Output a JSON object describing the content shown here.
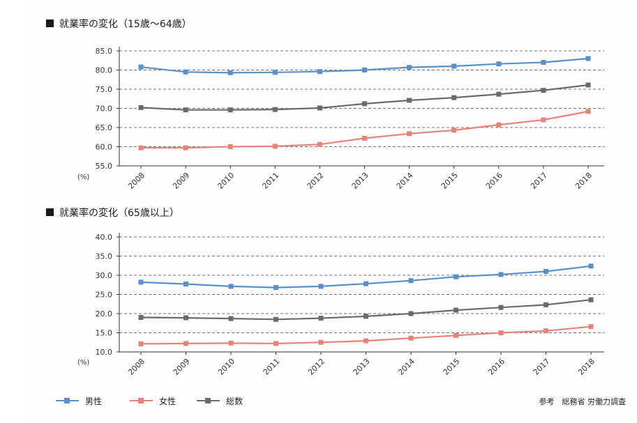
{
  "chart_data": [
    {
      "type": "line",
      "title": "就業率の変化（15歳〜64歳）",
      "unit_label": "(%)",
      "categories": [
        "2008",
        "2009",
        "2010",
        "2011",
        "2012",
        "2013",
        "2014",
        "2015",
        "2016",
        "2017",
        "2018"
      ],
      "ylim": [
        55.0,
        85.0
      ],
      "yticks": [
        "85.0",
        "80.0",
        "75.0",
        "70.0",
        "65.0",
        "60.0",
        "55.0"
      ],
      "ytick_values": [
        85,
        80,
        75,
        70,
        65,
        60,
        55
      ],
      "grid": true,
      "series": [
        {
          "name": "男性",
          "color": "#5b8fc8",
          "values": [
            80.8,
            79.5,
            79.3,
            79.4,
            79.6,
            80.0,
            80.7,
            81.0,
            81.6,
            82.0,
            83.0
          ]
        },
        {
          "name": "女性",
          "color": "#e5837a",
          "values": [
            59.7,
            59.7,
            60.0,
            60.1,
            60.6,
            62.2,
            63.4,
            64.3,
            65.7,
            67.0,
            69.2
          ]
        },
        {
          "name": "総数",
          "color": "#6a6a6a",
          "values": [
            70.2,
            69.6,
            69.6,
            69.7,
            70.1,
            71.2,
            72.1,
            72.8,
            73.7,
            74.7,
            76.1
          ]
        }
      ]
    },
    {
      "type": "line",
      "title": "就業率の変化（65歳以上）",
      "unit_label": "(%)",
      "categories": [
        "2008",
        "2009",
        "2010",
        "2011",
        "2012",
        "2013",
        "2014",
        "2015",
        "2016",
        "2017",
        "2018"
      ],
      "ylim": [
        10.0,
        40.0
      ],
      "yticks": [
        "40.0",
        "35.0",
        "30.0",
        "25.0",
        "20.0",
        "15.0",
        "10.0"
      ],
      "ytick_values": [
        40,
        35,
        30,
        25,
        20,
        15,
        10
      ],
      "grid": true,
      "series": [
        {
          "name": "男性",
          "color": "#5b8fc8",
          "values": [
            28.2,
            27.7,
            27.1,
            26.8,
            27.1,
            27.8,
            28.6,
            29.6,
            30.2,
            31.0,
            32.4
          ]
        },
        {
          "name": "女性",
          "color": "#e5837a",
          "values": [
            12.1,
            12.2,
            12.3,
            12.2,
            12.5,
            12.9,
            13.6,
            14.3,
            15.0,
            15.5,
            16.6
          ]
        },
        {
          "name": "総数",
          "color": "#6a6a6a",
          "values": [
            19.0,
            18.9,
            18.7,
            18.5,
            18.8,
            19.3,
            20.0,
            20.9,
            21.6,
            22.3,
            23.6
          ]
        }
      ]
    }
  ],
  "legend": [
    {
      "label": "男性",
      "color": "#5b8fc8"
    },
    {
      "label": "女性",
      "color": "#e5837a"
    },
    {
      "label": "総数",
      "color": "#6a6a6a"
    }
  ],
  "source": "参考　総務省 労働力調査"
}
